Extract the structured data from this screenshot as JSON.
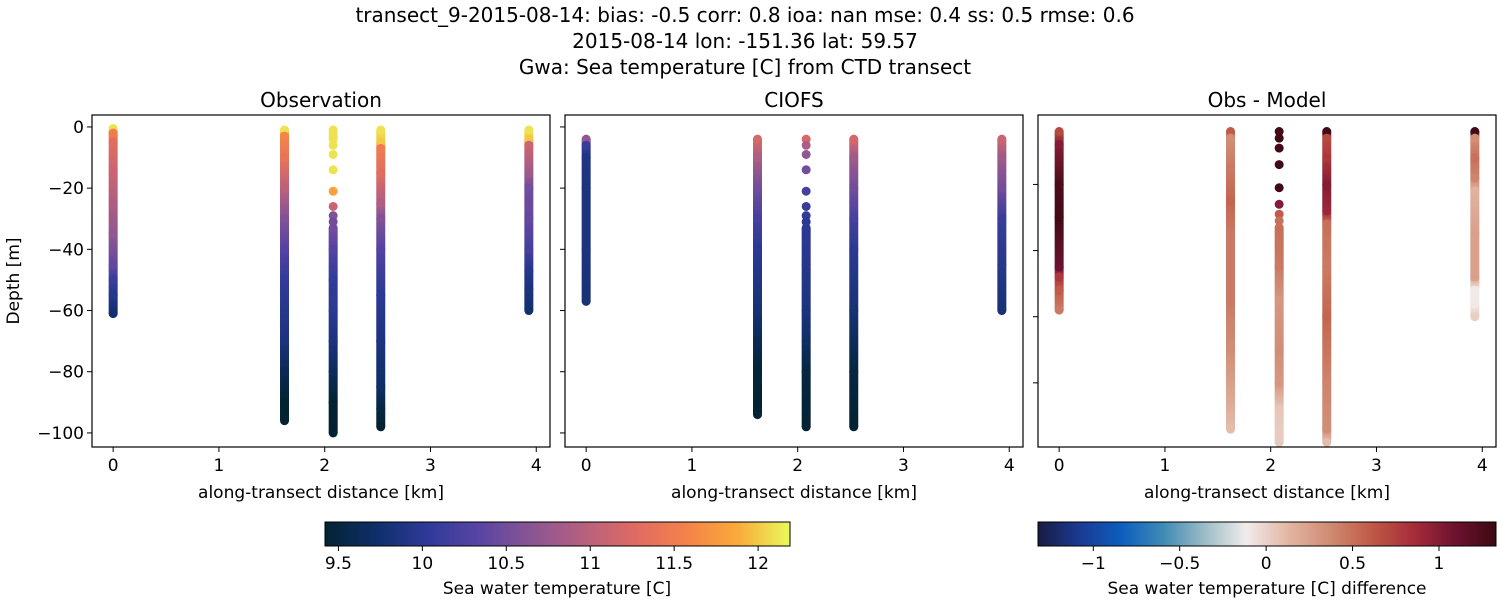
{
  "title_lines": [
    "transect_9-2015-08-14: bias: -0.5  corr: 0.8  ioa: nan  mse: 0.4  ss: 0.5  rmse: 0.6",
    "2015-08-14 lon: -151.36 lat: 59.57",
    "Gwa: Sea temperature [C] from CTD transect"
  ],
  "colorbars": [
    {
      "label": "Sea water temperature [C]",
      "range": [
        9.42,
        12.19
      ],
      "ticks": [
        9.5,
        10.0,
        10.5,
        11.0,
        11.5,
        12.0
      ],
      "colormap": [
        "#032333",
        "#0f2f6a",
        "#2f3a99",
        "#5a45a3",
        "#8a5593",
        "#b6607f",
        "#df6a63",
        "#f4824a",
        "#f9ab3a",
        "#e8fa5b"
      ]
    },
    {
      "label": "Sea water temperature [C] difference",
      "range": [
        -1.32,
        1.33
      ],
      "ticks": [
        -1.0,
        -0.5,
        0.0,
        0.5,
        1.0
      ],
      "colormap": [
        "#181c43",
        "#1b3a93",
        "#0c5ebe",
        "#3f8ab5",
        "#9cbcc6",
        "#f1eceb",
        "#e2b6a4",
        "#d08b73",
        "#bf5a47",
        "#a72e3b",
        "#6e1230",
        "#3c0911"
      ]
    }
  ],
  "chart_data": [
    {
      "type": "scatter",
      "title": "Observation",
      "xlabel": "along-transect distance [km]",
      "ylabel": "Depth [m]",
      "xlim": [
        -0.2,
        4.13
      ],
      "ylim": [
        -104.6,
        3.9
      ],
      "xticks": [
        0,
        1,
        2,
        3,
        4
      ],
      "yticks": [
        0,
        -20,
        -40,
        -60,
        -80,
        -100
      ],
      "ytick_labels": true,
      "colorbar": 0,
      "profiles": [
        {
          "x": 0,
          "points": [
            [
              -0.5,
              12.1
            ],
            [
              -2,
              11.5
            ],
            [
              -5,
              11.3
            ],
            [
              -15,
              11.1
            ],
            [
              -25,
              10.9
            ],
            [
              -35,
              10.7
            ],
            [
              -45,
              10.4
            ],
            [
              -50,
              10.1
            ],
            [
              -55,
              9.95
            ],
            [
              -61,
              9.75
            ]
          ],
          "sparse": []
        },
        {
          "x": 1.62,
          "points": [
            [
              -1,
              12.1
            ],
            [
              -3,
              11.6
            ],
            [
              -10,
              11.4
            ],
            [
              -20,
              11.0
            ],
            [
              -30,
              10.6
            ],
            [
              -40,
              10.3
            ],
            [
              -50,
              10.05
            ],
            [
              -60,
              9.95
            ],
            [
              -70,
              9.85
            ],
            [
              -80,
              9.6
            ],
            [
              -90,
              9.4
            ],
            [
              -96,
              9.35
            ]
          ],
          "sparse": []
        },
        {
          "x": 2.08,
          "points": [
            [
              -33,
              10.5
            ],
            [
              -40,
              10.3
            ],
            [
              -50,
              10.05
            ],
            [
              -60,
              10.0
            ],
            [
              -70,
              9.85
            ],
            [
              -80,
              9.65
            ],
            [
              -90,
              9.4
            ],
            [
              -100,
              9.35
            ]
          ],
          "sparse": [
            [
              -1,
              12.1
            ],
            [
              -2,
              12.1
            ],
            [
              -3,
              12.1
            ],
            [
              -4,
              12.1
            ],
            [
              -6,
              12.1
            ],
            [
              -9,
              12.1
            ],
            [
              -14,
              12.1
            ],
            [
              -21,
              11.8
            ],
            [
              -26,
              11.1
            ],
            [
              -29,
              10.6
            ],
            [
              -31,
              10.5
            ]
          ]
        },
        {
          "x": 2.53,
          "points": [
            [
              -1,
              12.1
            ],
            [
              -5,
              12.0
            ],
            [
              -7,
              11.5
            ],
            [
              -15,
              11.3
            ],
            [
              -25,
              10.9
            ],
            [
              -30,
              10.6
            ],
            [
              -40,
              10.3
            ],
            [
              -55,
              10.0
            ],
            [
              -70,
              9.85
            ],
            [
              -85,
              9.7
            ],
            [
              -92,
              9.5
            ],
            [
              -98,
              9.4
            ]
          ],
          "sparse": []
        },
        {
          "x": 3.93,
          "points": [
            [
              -1,
              12.1
            ],
            [
              -4,
              12.0
            ],
            [
              -6,
              11.1
            ],
            [
              -15,
              10.8
            ],
            [
              -20,
              10.5
            ],
            [
              -30,
              10.4
            ],
            [
              -40,
              10.2
            ],
            [
              -47,
              9.95
            ],
            [
              -53,
              9.85
            ],
            [
              -60,
              9.75
            ]
          ],
          "sparse": []
        }
      ]
    },
    {
      "type": "scatter",
      "title": "CIOFS",
      "xlabel": "along-transect distance [km]",
      "ylabel": "",
      "xlim": [
        -0.2,
        4.13
      ],
      "ylim": [
        -104.6,
        3.9
      ],
      "xticks": [
        0,
        1,
        2,
        3,
        4
      ],
      "yticks": [
        0,
        -20,
        -40,
        -60,
        -80,
        -100
      ],
      "ytick_labels": false,
      "colorbar": 0,
      "profiles": [
        {
          "x": 0,
          "points": [
            [
              -4,
              10.7
            ],
            [
              -6,
              10.1
            ],
            [
              -10,
              9.9
            ],
            [
              -20,
              9.85
            ],
            [
              -40,
              9.85
            ],
            [
              -57,
              9.8
            ]
          ],
          "sparse": []
        },
        {
          "x": 1.62,
          "points": [
            [
              -4,
              11.2
            ],
            [
              -10,
              10.9
            ],
            [
              -20,
              10.5
            ],
            [
              -30,
              10.2
            ],
            [
              -40,
              10.0
            ],
            [
              -50,
              9.9
            ],
            [
              -60,
              9.8
            ],
            [
              -70,
              9.6
            ],
            [
              -80,
              9.45
            ],
            [
              -94,
              9.35
            ]
          ],
          "sparse": []
        },
        {
          "x": 2.08,
          "points": [
            [
              -33,
              10.0
            ],
            [
              -45,
              9.95
            ],
            [
              -60,
              9.85
            ],
            [
              -70,
              9.7
            ],
            [
              -80,
              9.5
            ],
            [
              -98,
              9.35
            ]
          ],
          "sparse": [
            [
              -4,
              11.2
            ],
            [
              -6,
              10.9
            ],
            [
              -9,
              10.7
            ],
            [
              -14,
              10.5
            ],
            [
              -21,
              10.2
            ],
            [
              -26,
              10.1
            ],
            [
              -29,
              10.05
            ],
            [
              -31,
              10.0
            ]
          ]
        },
        {
          "x": 2.53,
          "points": [
            [
              -4,
              11.2
            ],
            [
              -10,
              10.8
            ],
            [
              -20,
              10.5
            ],
            [
              -30,
              10.2
            ],
            [
              -40,
              10.0
            ],
            [
              -60,
              9.8
            ],
            [
              -80,
              9.5
            ],
            [
              -98,
              9.35
            ]
          ],
          "sparse": []
        },
        {
          "x": 3.93,
          "points": [
            [
              -4,
              11.1
            ],
            [
              -10,
              10.8
            ],
            [
              -20,
              10.5
            ],
            [
              -30,
              10.1
            ],
            [
              -45,
              9.95
            ],
            [
              -60,
              9.8
            ]
          ],
          "sparse": []
        }
      ]
    },
    {
      "type": "scatter",
      "title": "Obs - Model",
      "xlabel": "along-transect distance [km]",
      "ylabel": "",
      "xlim": [
        -0.2,
        4.13
      ],
      "ylim": [
        -99.4,
        1.0
      ],
      "xticks": [
        0,
        1,
        2,
        3,
        4
      ],
      "yticks": [
        -20,
        -40,
        -60,
        -80
      ],
      "ytick_labels": false,
      "colorbar": 1,
      "profiles": [
        {
          "x": 0,
          "points": [
            [
              -4,
              0.7
            ],
            [
              -8,
              1.0
            ],
            [
              -20,
              1.25
            ],
            [
              -30,
              1.3
            ],
            [
              -45,
              1.1
            ],
            [
              -48,
              0.8
            ],
            [
              -52,
              0.6
            ],
            [
              -58,
              0.45
            ]
          ],
          "sparse": []
        },
        {
          "x": 1.62,
          "points": [
            [
              -4,
              0.6
            ],
            [
              -6,
              0.35
            ],
            [
              -15,
              0.45
            ],
            [
              -25,
              0.55
            ],
            [
              -35,
              0.45
            ],
            [
              -55,
              0.45
            ],
            [
              -70,
              0.35
            ],
            [
              -85,
              0.2
            ],
            [
              -94,
              0.1
            ]
          ],
          "sparse": []
        },
        {
          "x": 2.08,
          "points": [
            [
              -33,
              0.5
            ],
            [
              -45,
              0.45
            ],
            [
              -55,
              0.3
            ],
            [
              -70,
              0.35
            ],
            [
              -80,
              0.3
            ],
            [
              -88,
              0.05
            ],
            [
              -98,
              0.03
            ]
          ],
          "sparse": [
            [
              -4,
              1.3
            ],
            [
              -6,
              1.3
            ],
            [
              -9,
              1.3
            ],
            [
              -14,
              1.3
            ],
            [
              -21,
              1.3
            ],
            [
              -26,
              1.0
            ],
            [
              -29,
              0.6
            ],
            [
              -31,
              0.5
            ]
          ]
        },
        {
          "x": 2.53,
          "points": [
            [
              -4,
              1.3
            ],
            [
              -6,
              0.7
            ],
            [
              -12,
              0.8
            ],
            [
              -20,
              1.0
            ],
            [
              -28,
              0.9
            ],
            [
              -32,
              0.5
            ],
            [
              -45,
              0.45
            ],
            [
              -60,
              0.55
            ],
            [
              -80,
              0.4
            ],
            [
              -94,
              0.35
            ],
            [
              -98,
              0.1
            ]
          ],
          "sparse": []
        },
        {
          "x": 3.93,
          "points": [
            [
              -4,
              1.3
            ],
            [
              -6,
              0.35
            ],
            [
              -12,
              0.5
            ],
            [
              -18,
              0.4
            ],
            [
              -22,
              0.15
            ],
            [
              -35,
              0.25
            ],
            [
              -48,
              0.25
            ],
            [
              -52,
              -0.1
            ],
            [
              -56,
              -0.1
            ],
            [
              -60,
              0.02
            ]
          ],
          "sparse": []
        }
      ]
    }
  ]
}
